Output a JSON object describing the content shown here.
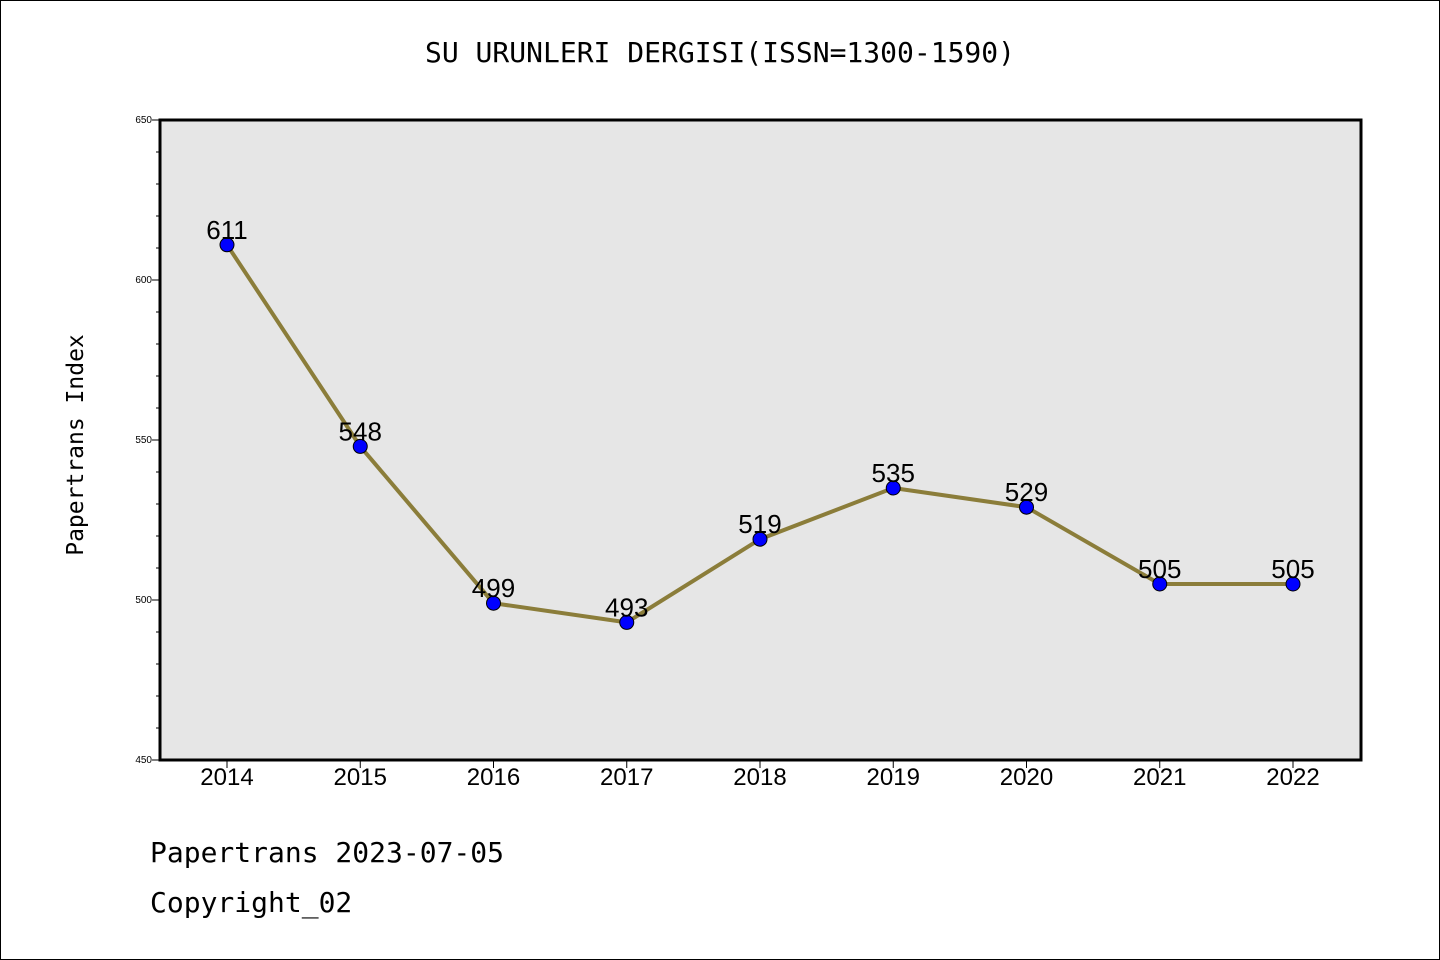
{
  "chart_data": {
    "type": "line",
    "title": "SU URUNLERI DERGISI(ISSN=1300-1590)",
    "ylabel": "Papertrans Index",
    "xlabel": "",
    "categories": [
      "2014",
      "2015",
      "2016",
      "2017",
      "2018",
      "2019",
      "2020",
      "2021",
      "2022"
    ],
    "values": [
      611,
      548,
      499,
      493,
      519,
      535,
      529,
      505,
      505
    ],
    "ylim": [
      450,
      650
    ],
    "yticks": [
      450,
      500,
      550,
      600,
      650
    ],
    "grid": false,
    "colors": {
      "line": "#8B7D3A",
      "marker": "#0000FF",
      "plot_background": "#E6E6E6"
    }
  },
  "footer": {
    "line1": "Papertrans 2023-07-05",
    "line2": "Copyright_02"
  }
}
